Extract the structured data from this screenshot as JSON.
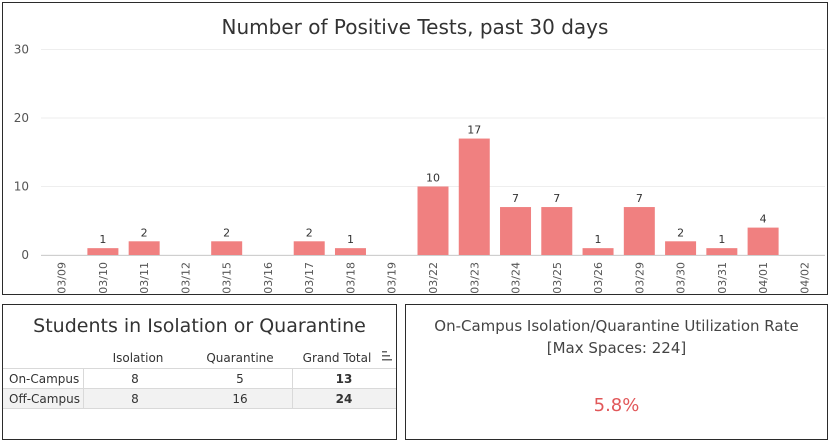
{
  "chart_data": {
    "type": "bar",
    "title": "Number of Positive Tests, past 30 days",
    "categories": [
      "03/09",
      "03/10",
      "03/11",
      "03/12",
      "03/15",
      "03/16",
      "03/17",
      "03/18",
      "03/19",
      "03/22",
      "03/23",
      "03/24",
      "03/25",
      "03/26",
      "03/29",
      "03/30",
      "03/31",
      "04/01",
      "04/02"
    ],
    "values": [
      0,
      1,
      2,
      0,
      2,
      0,
      2,
      1,
      0,
      10,
      17,
      7,
      7,
      1,
      7,
      2,
      1,
      4,
      0
    ],
    "data_labels": [
      "",
      "1",
      "2",
      "",
      "2",
      "",
      "2",
      "1",
      "",
      "10",
      "17",
      "7",
      "7",
      "1",
      "7",
      "2",
      "1",
      "4",
      ""
    ],
    "yticks": [
      "0",
      "10",
      "20",
      "30"
    ],
    "ylim": [
      0,
      30
    ],
    "bar_color": "#f08080",
    "grid": true,
    "xlabel": "",
    "ylabel": ""
  },
  "table": {
    "title": "Students in Isolation or Quarantine",
    "headers": [
      "Isolation",
      "Quarantine",
      "Grand Total"
    ],
    "rows": [
      {
        "label": "On-Campus",
        "isolation": "8",
        "quarantine": "5",
        "total": "13"
      },
      {
        "label": "Off-Campus",
        "isolation": "8",
        "quarantine": "16",
        "total": "24"
      }
    ],
    "sort_icon": "sort-descending-icon"
  },
  "utilization": {
    "title_line1": "On-Campus Isolation/Quarantine Utilization Rate",
    "title_line2": "[Max Spaces: 224]",
    "value": "5.8%",
    "value_color": "#e15759"
  }
}
